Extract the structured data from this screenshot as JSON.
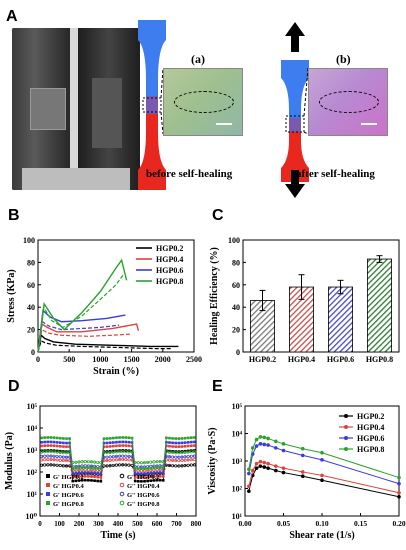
{
  "panels": {
    "A": "A",
    "B": "B",
    "C": "C",
    "D": "D",
    "E": "E"
  },
  "panelA": {
    "label_a": "(a)",
    "label_b": "(b)",
    "caption_before": "before self-healing",
    "caption_after": "after self-healing"
  },
  "chart_data": [
    {
      "id": "B",
      "type": "line",
      "xlabel": "Strain (%)",
      "ylabel": "Stress (KPa)",
      "xlim": [
        0,
        2500
      ],
      "ylim": [
        0,
        100
      ],
      "xticks": [
        0,
        500,
        1000,
        1500,
        2000,
        2500
      ],
      "yticks": [
        0,
        20,
        40,
        60,
        80,
        100
      ],
      "legend_position": "top-right",
      "series": [
        {
          "name": "HGP0.2",
          "color": "#000000",
          "solid": [
            [
              0,
              0
            ],
            [
              50,
              15
            ],
            [
              110,
              12
            ],
            [
              250,
              9
            ],
            [
              600,
              7
            ],
            [
              1200,
              6
            ],
            [
              1800,
              5
            ],
            [
              2250,
              5
            ]
          ],
          "dashed": [
            [
              0,
              0
            ],
            [
              50,
              10
            ],
            [
              120,
              8
            ],
            [
              300,
              6
            ],
            [
              700,
              5
            ],
            [
              1300,
              4
            ],
            [
              1900,
              3
            ],
            [
              2150,
              3
            ]
          ]
        },
        {
          "name": "HGP0.4",
          "color": "#d9453b",
          "solid": [
            [
              0,
              0
            ],
            [
              60,
              25
            ],
            [
              150,
              22
            ],
            [
              300,
              18
            ],
            [
              700,
              18
            ],
            [
              1200,
              21
            ],
            [
              1580,
              25
            ],
            [
              1610,
              19
            ]
          ],
          "dashed": [
            [
              0,
              0
            ],
            [
              60,
              20
            ],
            [
              160,
              17
            ],
            [
              350,
              15
            ],
            [
              800,
              14
            ],
            [
              1200,
              15
            ],
            [
              1480,
              16
            ]
          ]
        },
        {
          "name": "HGP0.6",
          "color": "#3b3bd9",
          "solid": [
            [
              0,
              0
            ],
            [
              80,
              37
            ],
            [
              200,
              31
            ],
            [
              380,
              27
            ],
            [
              700,
              28
            ],
            [
              1100,
              30
            ],
            [
              1400,
              33
            ]
          ],
          "dashed": [
            [
              0,
              0
            ],
            [
              70,
              27
            ],
            [
              180,
              23
            ],
            [
              380,
              20
            ],
            [
              700,
              21
            ],
            [
              1000,
              22
            ],
            [
              1300,
              24
            ]
          ]
        },
        {
          "name": "HGP0.8",
          "color": "#2aa32a",
          "solid": [
            [
              0,
              0
            ],
            [
              100,
              43
            ],
            [
              250,
              30
            ],
            [
              420,
              20
            ],
            [
              700,
              35
            ],
            [
              1000,
              54
            ],
            [
              1250,
              75
            ],
            [
              1340,
              82
            ],
            [
              1420,
              64
            ]
          ],
          "dashed": [
            [
              0,
              0
            ],
            [
              90,
              40
            ],
            [
              220,
              28
            ],
            [
              400,
              22
            ],
            [
              700,
              32
            ],
            [
              1000,
              47
            ],
            [
              1250,
              60
            ],
            [
              1380,
              70
            ]
          ]
        }
      ]
    },
    {
      "id": "C",
      "type": "bar",
      "xlabel": "",
      "ylabel": "Healing Efficiency (%)",
      "ylim": [
        0,
        100
      ],
      "yticks": [
        0,
        20,
        40,
        60,
        80,
        100
      ],
      "categories": [
        "HGP0.2",
        "HGP0.4",
        "HGP0.6",
        "HGP0.8"
      ],
      "values": [
        46,
        58,
        58,
        83
      ],
      "errors": [
        9,
        11,
        6,
        3
      ],
      "colors": [
        "#7a7a7a",
        "#c2504e",
        "#4a4ac8",
        "#2e7d32"
      ]
    },
    {
      "id": "D",
      "type": "line",
      "xlabel": "Time (s)",
      "ylabel": "Modulus (Pa)",
      "yscale": "log",
      "ylim": [
        1,
        100000
      ],
      "yticks": [
        "10⁰",
        "10¹",
        "10²",
        "10³",
        "10⁴",
        "10⁵"
      ],
      "xlim": [
        0,
        800
      ],
      "xticks": [
        0,
        100,
        200,
        300,
        400,
        500,
        600,
        700,
        800
      ],
      "legend_position": "bottom-right",
      "legend": [
        "G' HGP0.2",
        "G'' HGP0.2",
        "G' HGP0.4",
        "G'' HGP0.4",
        "G' HGP0.6",
        "G'' HGP0.6",
        "G' HGP0.8",
        "G'' HGP0.8"
      ],
      "segments": [
        [
          0,
          160,
          "high"
        ],
        [
          160,
          320,
          "low"
        ],
        [
          320,
          480,
          "high"
        ],
        [
          480,
          640,
          "low"
        ],
        [
          640,
          800,
          "high"
        ]
      ],
      "series": [
        {
          "name": "G' HGP0.2",
          "color": "#000000",
          "marker": "square",
          "high": 900,
          "low": 40
        },
        {
          "name": "G'' HGP0.2",
          "color": "#000000",
          "marker": "circle",
          "high": 200,
          "low": 80
        },
        {
          "name": "G' HGP0.4",
          "color": "#d9453b",
          "marker": "square",
          "high": 1500,
          "low": 60
        },
        {
          "name": "G'' HGP0.4",
          "color": "#d9453b",
          "marker": "circle",
          "high": 350,
          "low": 120
        },
        {
          "name": "G' HGP0.6",
          "color": "#3b3bd9",
          "marker": "square",
          "high": 2200,
          "low": 90
        },
        {
          "name": "G'' HGP0.6",
          "color": "#3b3bd9",
          "marker": "circle",
          "high": 500,
          "low": 180
        },
        {
          "name": "G' HGP0.8",
          "color": "#2aa32a",
          "marker": "square",
          "high": 3500,
          "low": 150
        },
        {
          "name": "G'' HGP0.8",
          "color": "#2aa32a",
          "marker": "circle",
          "high": 800,
          "low": 280
        }
      ]
    },
    {
      "id": "E",
      "type": "line",
      "xlabel": "Shear rate (1/s)",
      "ylabel": "Viscosity (Pa·S)",
      "yscale": "log",
      "ylim": [
        10,
        100000
      ],
      "yticks": [
        "10¹",
        "10²",
        "10³",
        "10⁴",
        "10⁵"
      ],
      "xlim": [
        0,
        0.2
      ],
      "xticks": [
        0.0,
        0.05,
        0.1,
        0.15,
        0.2
      ],
      "xticklabels": [
        "0.00",
        "0.05",
        "0.10",
        "0.15",
        "0.20"
      ],
      "legend_position": "top-right",
      "x": [
        0.005,
        0.01,
        0.015,
        0.02,
        0.025,
        0.03,
        0.04,
        0.05,
        0.075,
        0.1,
        0.2
      ],
      "series": [
        {
          "name": "HGP0.2",
          "color": "#000000",
          "values": [
            80,
            300,
            550,
            650,
            600,
            550,
            450,
            380,
            280,
            200,
            50
          ]
        },
        {
          "name": "HGP0.4",
          "color": "#d9453b",
          "values": [
            120,
            450,
            800,
            950,
            880,
            800,
            650,
            550,
            400,
            300,
            70
          ]
        },
        {
          "name": "HGP0.6",
          "color": "#3b3bd9",
          "values": [
            350,
            1800,
            3500,
            4200,
            4000,
            3800,
            3000,
            2400,
            1600,
            1100,
            150
          ]
        },
        {
          "name": "HGP0.8",
          "color": "#2aa32a",
          "values": [
            500,
            3000,
            6000,
            7500,
            7200,
            6600,
            5200,
            4200,
            2800,
            2000,
            250
          ]
        }
      ]
    }
  ]
}
